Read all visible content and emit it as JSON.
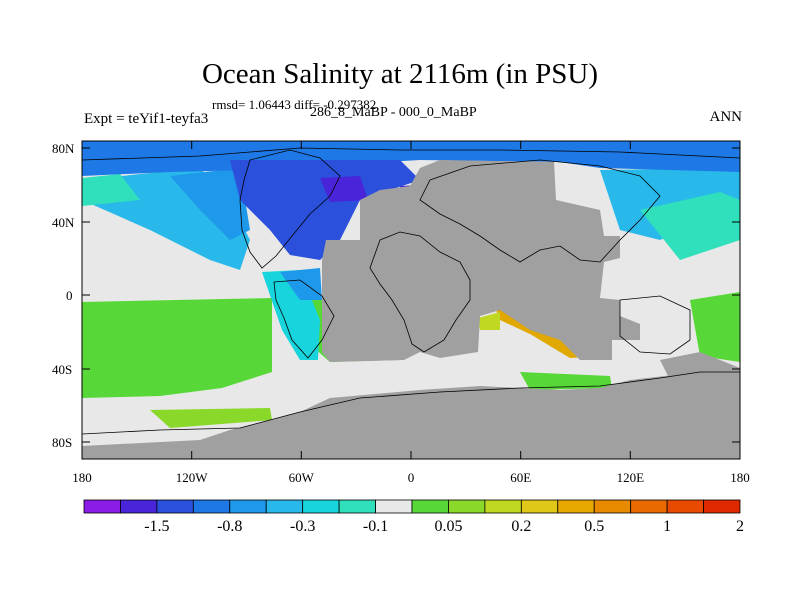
{
  "title": "Ocean Salinity at 2116m (in PSU)",
  "subtitle": "rmsd= 1.06443 diff= -0.297382",
  "left_label": "Expt = teYif1-teyfa3",
  "center_label": "286_8_MaBP - 000_0_MaBP",
  "right_label": "ANN",
  "lat_ticks": [
    "80N",
    "40N",
    "0",
    "40S",
    "80S"
  ],
  "lon_ticks": [
    "180",
    "120W",
    "60W",
    "0",
    "60E",
    "120E",
    "180"
  ],
  "colorbar": {
    "colors": [
      "#8a1ce6",
      "#4a24d8",
      "#2a50dc",
      "#1e78e6",
      "#1e98ea",
      "#28b8ea",
      "#18d4dc",
      "#30e0bc",
      "#e8e8e8",
      "#58d838",
      "#8ad82a",
      "#c0d822",
      "#e0c818",
      "#e8a800",
      "#e88a00",
      "#e86a00",
      "#e84a00",
      "#e02800"
    ],
    "labels": [
      "-1.5",
      "-0.8",
      "-0.3",
      "-0.1",
      "0.05",
      "0.2",
      "0.5",
      "1",
      "2"
    ]
  },
  "map_colors": {
    "land": "#a0a0a0",
    "neutral": "#e8e8e8",
    "coastline": "#000000"
  }
}
